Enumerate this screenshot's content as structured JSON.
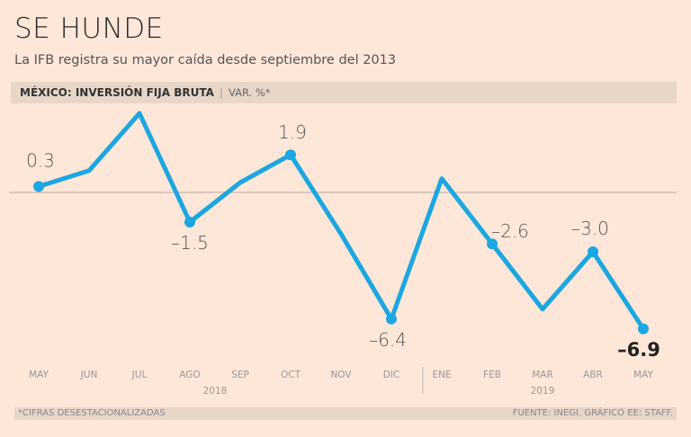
{
  "header": {
    "title": "SE HUNDE",
    "subtitle": "La IFB registra su mayor caída desde septiembre del 2013",
    "bar_label": "MÉXICO: INVERSIÓN FIJA BRUTA",
    "bar_separator": "|",
    "bar_unit": "VAR. %*"
  },
  "footer": {
    "note": "*CIFRAS DESESTACIONALIZADAS",
    "source": "FUENTE: INEGI. GRÁFICO EE: STAFF."
  },
  "chart_data": {
    "type": "line",
    "title": "MÉXICO: INVERSIÓN FIJA BRUTA",
    "ylabel": "VAR. %*",
    "categories": [
      "MAY",
      "JUN",
      "JUL",
      "AGO",
      "SEP",
      "OCT",
      "NOV",
      "DIC",
      "ENE",
      "FEB",
      "MAR",
      "ABR",
      "MAY"
    ],
    "years": [
      {
        "label": "2018",
        "from": 0,
        "to": 7
      },
      {
        "label": "2019",
        "from": 8,
        "to": 12
      }
    ],
    "values": [
      0.3,
      1.1,
      4.0,
      -1.5,
      0.5,
      1.9,
      -2.1,
      -6.4,
      0.7,
      -2.6,
      -5.9,
      -3.0,
      -6.9
    ],
    "data_labels": [
      "0.3",
      null,
      null,
      "-1.5",
      null,
      "1.9",
      null,
      "-6.4",
      null,
      "-2.6",
      null,
      "-3.0",
      "-6.9"
    ],
    "ylim": [
      -7.5,
      4.5
    ],
    "reference_line": 0,
    "grid": false,
    "line_color": "#1ba7e1",
    "zero_line_color": "#b8aaa0"
  }
}
